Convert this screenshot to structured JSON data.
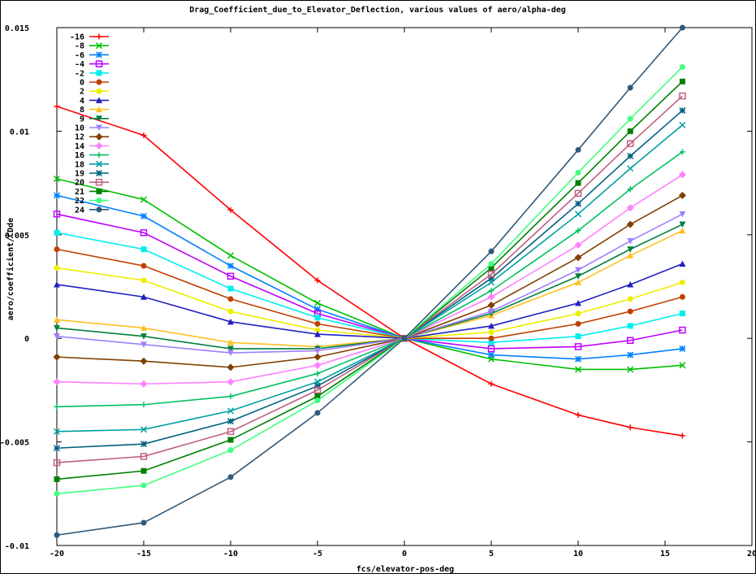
{
  "chart_data": {
    "type": "line",
    "title": "Drag_Coefficient_due_to_Elevator_Deflection, various values of aero/alpha-deg",
    "xlabel": "fcs/elevator-pos-deg",
    "ylabel": "aero/coefficient/CDde",
    "xlim": [
      -20,
      20
    ],
    "ylim": [
      -0.01,
      0.015
    ],
    "x_ticks": [
      -20,
      -15,
      -10,
      -5,
      0,
      5,
      10,
      15,
      20
    ],
    "x_tick_labels": [
      "-20",
      "-15",
      "-10",
      "-5",
      "0",
      "5",
      "10",
      "15",
      "20"
    ],
    "y_ticks": [
      -0.01,
      -0.005,
      0,
      0.005,
      0.01,
      0.015
    ],
    "y_tick_labels": [
      "-0.01",
      "-0.005",
      "0",
      "0.005",
      "0.01",
      "0.015"
    ],
    "legend_position": "top-left",
    "x": [
      -20,
      -15,
      -10,
      -5,
      0,
      5,
      10,
      13,
      16
    ],
    "series": [
      {
        "name": "-16",
        "color": "#ff0000",
        "marker": "plus",
        "values": [
          0.0112,
          0.0098,
          0.0062,
          0.0028,
          0,
          -0.0022,
          -0.0037,
          -0.0043,
          -0.0047
        ]
      },
      {
        "name": "-8",
        "color": "#00c000",
        "marker": "cross",
        "values": [
          0.0077,
          0.0067,
          0.004,
          0.0017,
          0,
          -0.001,
          -0.0015,
          -0.0015,
          -0.0013
        ]
      },
      {
        "name": "-6",
        "color": "#0080ff",
        "marker": "star",
        "values": [
          0.0069,
          0.0059,
          0.0035,
          0.0014,
          0,
          -0.0008,
          -0.001,
          -0.0008,
          -0.0005
        ]
      },
      {
        "name": "-4",
        "color": "#c000ff",
        "marker": "box",
        "values": [
          0.006,
          0.0051,
          0.003,
          0.0012,
          0,
          -0.0005,
          -0.0004,
          -0.0001,
          0.0004
        ]
      },
      {
        "name": "-2",
        "color": "#00eeee",
        "marker": "filledbox",
        "values": [
          0.0051,
          0.0043,
          0.0024,
          0.001,
          0,
          -0.0002,
          0.0001,
          0.0006,
          0.0012
        ]
      },
      {
        "name": "0",
        "color": "#c04000",
        "marker": "circle",
        "values": [
          0.0043,
          0.0035,
          0.0019,
          0.0007,
          0,
          0,
          0.0007,
          0.0013,
          0.002
        ]
      },
      {
        "name": "2",
        "color": "#eeee00",
        "marker": "circle",
        "values": [
          0.0034,
          0.0028,
          0.0013,
          0.0004,
          0,
          0.0003,
          0.0012,
          0.0019,
          0.0027
        ]
      },
      {
        "name": "4",
        "color": "#2020c0",
        "marker": "triangle",
        "values": [
          0.0026,
          0.002,
          0.0008,
          0.0002,
          0,
          0.0006,
          0.0017,
          0.0026,
          0.0036
        ]
      },
      {
        "name": "8",
        "color": "#ffc020",
        "marker": "triangle",
        "values": [
          0.0009,
          0.0005,
          -0.0002,
          -0.0004,
          0,
          0.0011,
          0.0027,
          0.004,
          0.0052
        ]
      },
      {
        "name": "9",
        "color": "#008040",
        "marker": "invtriangle",
        "values": [
          0.0005,
          0.0001,
          -0.0005,
          -0.0005,
          0,
          0.0012,
          0.003,
          0.0043,
          0.0055
        ]
      },
      {
        "name": "10",
        "color": "#a080ff",
        "marker": "invtriangle",
        "values": [
          0.0001,
          -0.0003,
          -0.0007,
          -0.0006,
          0,
          0.0013,
          0.0033,
          0.0047,
          0.006
        ]
      },
      {
        "name": "12",
        "color": "#804000",
        "marker": "diamond",
        "values": [
          -0.0009,
          -0.0011,
          -0.0014,
          -0.0009,
          0,
          0.0016,
          0.0039,
          0.0055,
          0.0069
        ]
      },
      {
        "name": "14",
        "color": "#ff80ff",
        "marker": "diamond",
        "values": [
          -0.0021,
          -0.0022,
          -0.0021,
          -0.0013,
          0,
          0.002,
          0.0045,
          0.0063,
          0.0079
        ]
      },
      {
        "name": "16",
        "color": "#00c060",
        "marker": "plus",
        "values": [
          -0.0033,
          -0.0032,
          -0.0028,
          -0.0017,
          0,
          0.0023,
          0.0052,
          0.0072,
          0.009
        ]
      },
      {
        "name": "18",
        "color": "#00a0a0",
        "marker": "cross",
        "values": [
          -0.0045,
          -0.0044,
          -0.0035,
          -0.0021,
          0,
          0.0027,
          0.006,
          0.0082,
          0.0103
        ]
      },
      {
        "name": "19",
        "color": "#006080",
        "marker": "star",
        "values": [
          -0.0053,
          -0.0051,
          -0.004,
          -0.0023,
          0,
          0.0029,
          0.0065,
          0.0088,
          0.011
        ]
      },
      {
        "name": "20",
        "color": "#c06080",
        "marker": "box",
        "values": [
          -0.006,
          -0.0057,
          -0.0045,
          -0.0025,
          0,
          0.0031,
          0.007,
          0.0094,
          0.0117
        ]
      },
      {
        "name": "21",
        "color": "#008000",
        "marker": "filledbox",
        "values": [
          -0.0068,
          -0.0064,
          -0.0049,
          -0.0028,
          0,
          0.0034,
          0.0075,
          0.01,
          0.0124
        ]
      },
      {
        "name": "22",
        "color": "#40ff80",
        "marker": "circle",
        "values": [
          -0.0075,
          -0.0071,
          -0.0054,
          -0.003,
          0,
          0.0036,
          0.008,
          0.0106,
          0.0131
        ]
      },
      {
        "name": "24",
        "color": "#305878",
        "marker": "circle",
        "values": [
          -0.0095,
          -0.0089,
          -0.0067,
          -0.0036,
          0,
          0.0042,
          0.0091,
          0.0121,
          0.015
        ]
      }
    ]
  }
}
